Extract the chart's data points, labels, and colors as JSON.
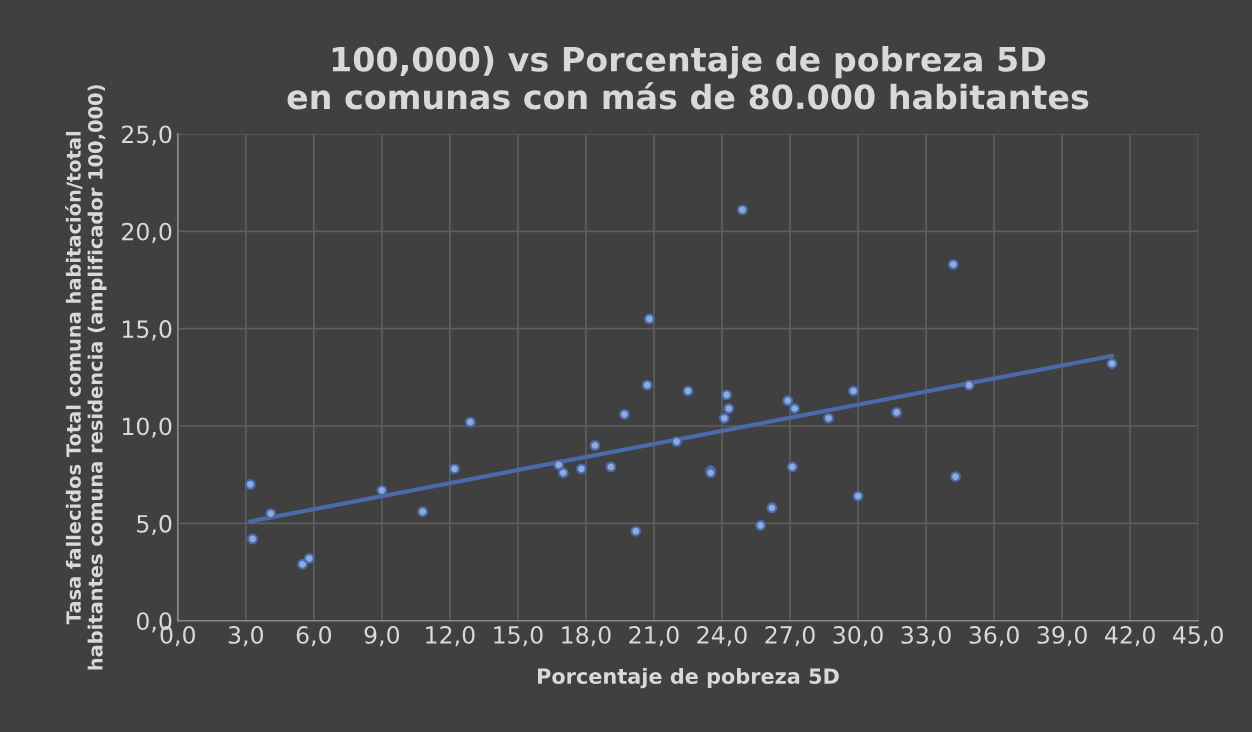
{
  "chart_data": {
    "type": "scatter",
    "title": "100,000) vs Porcentaje de pobreza 5D\nen comunas con más de 80.000 habitantes",
    "xlabel": "Porcentaje de pobreza 5D",
    "ylabel": "Tasa fallecidos Total comuna habitación/total\nhabitantes comuna residencia (amplificador 100,000)",
    "series": [
      {
        "color": "#8faadc",
        "marker": "circle",
        "x": [
          3.2,
          4.1,
          3.3,
          5.5,
          5.8,
          9.0,
          10.8,
          12.2,
          12.9,
          16.8,
          17.0,
          17.8,
          18.4,
          19.1,
          19.7,
          20.2,
          20.7,
          20.8,
          22.0,
          22.5,
          23.5,
          23.5,
          24.2,
          24.3,
          24.1,
          24.9,
          25.7,
          26.2,
          26.9,
          27.2,
          27.1,
          28.7,
          29.8,
          30.0,
          31.7,
          34.2,
          34.3,
          34.9,
          41.2
        ],
        "values": [
          7.0,
          5.5,
          4.2,
          2.9,
          3.2,
          6.7,
          5.6,
          7.8,
          10.2,
          8.0,
          7.6,
          7.8,
          9.0,
          7.9,
          10.6,
          4.6,
          12.1,
          15.5,
          9.2,
          11.8,
          7.7,
          7.6,
          11.6,
          10.9,
          10.4,
          21.1,
          4.9,
          5.8,
          11.3,
          10.9,
          7.9,
          10.4,
          11.8,
          6.4,
          10.7,
          18.3,
          7.4,
          12.1,
          13.2
        ]
      },
      {
        "type": "line",
        "color": "#4a6aa8",
        "marker": "none",
        "line_style": "solid",
        "x": [
          3.2,
          41.2
        ],
        "values": [
          5.1,
          13.6
        ]
      }
    ],
    "xlim": [
      0,
      45
    ],
    "xticks": [
      {
        "value": 0,
        "label": "0,0"
      },
      {
        "value": 3,
        "label": "3,0"
      },
      {
        "value": 6,
        "label": "6,0"
      },
      {
        "value": 9,
        "label": "9,0"
      },
      {
        "value": 12,
        "label": "12,0"
      },
      {
        "value": 15,
        "label": "15,0"
      },
      {
        "value": 18,
        "label": "18,0"
      },
      {
        "value": 21,
        "label": "21,0"
      },
      {
        "value": 24,
        "label": "24,0"
      },
      {
        "value": 27,
        "label": "27,0"
      },
      {
        "value": 30,
        "label": "30,0"
      },
      {
        "value": 33,
        "label": "33,0"
      },
      {
        "value": 36,
        "label": "36,0"
      },
      {
        "value": 39,
        "label": "39,0"
      },
      {
        "value": 42,
        "label": "42,0"
      },
      {
        "value": 45,
        "label": "45,0"
      }
    ],
    "ylim": [
      0,
      25
    ],
    "yticks": [
      {
        "value": 0,
        "label": "0,0"
      },
      {
        "value": 5,
        "label": "5,0"
      },
      {
        "value": 10,
        "label": "10,0"
      },
      {
        "value": 15,
        "label": "15,0"
      },
      {
        "value": 20,
        "label": "20,0"
      },
      {
        "value": 25,
        "label": "25,0"
      }
    ],
    "grid": true
  }
}
